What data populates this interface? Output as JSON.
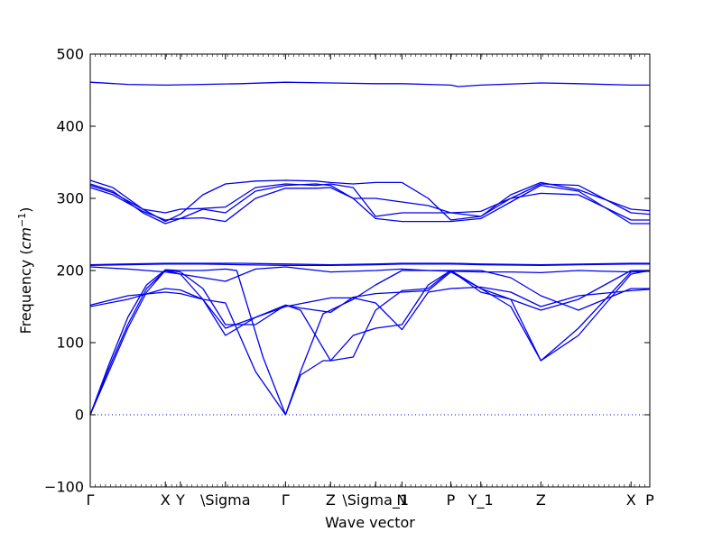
{
  "chart_data": {
    "type": "line",
    "title": "",
    "xlabel": "Wave vector",
    "ylabel_prefix": "Frequency (",
    "ylabel_unit_base": "cm",
    "ylabel_unit_exp": "−1",
    "ylabel_suffix": ")",
    "ylim": [
      -100,
      500
    ],
    "yticks": [
      -100,
      0,
      100,
      200,
      300,
      400,
      500
    ],
    "xlim": [
      0,
      7.45
    ],
    "grid": false,
    "legend": "none",
    "line_color": "#0000ee",
    "zero_line_color": "#0000ee",
    "xticks": [
      {
        "x": 0.0,
        "label": "Γ"
      },
      {
        "x": 1.0,
        "label": "X"
      },
      {
        "x": 1.2,
        "label": "Y"
      },
      {
        "x": 1.8,
        "label": "\\Sigma"
      },
      {
        "x": 2.6,
        "label": "Γ"
      },
      {
        "x": 3.2,
        "label": "Z"
      },
      {
        "x": 3.8,
        "label": "\\Sigma_1"
      },
      {
        "x": 4.15,
        "label": "N"
      },
      {
        "x": 4.8,
        "label": "P"
      },
      {
        "x": 5.2,
        "label": "Y_1"
      },
      {
        "x": 6.0,
        "label": "Z"
      },
      {
        "x": 7.2,
        "label": "X"
      },
      {
        "x": 7.45,
        "label": "P"
      }
    ],
    "series": [
      {
        "x": [
          0,
          0.25,
          0.5,
          0.75,
          1,
          1.2,
          1.5,
          1.8,
          2.2,
          2.6,
          2.8,
          3.2,
          3.5,
          3.8,
          4.15,
          4.5,
          4.8,
          5.2,
          5.6,
          6,
          6.5,
          7.2,
          7.45
        ],
        "values": [
          0,
          60,
          120,
          170,
          200,
          195,
          160,
          110,
          135,
          152,
          148,
          142,
          163,
          168,
          170,
          172,
          198,
          175,
          150,
          75,
          120,
          198,
          200
        ]
      },
      {
        "x": [
          0,
          0.25,
          0.5,
          0.75,
          1,
          1.2,
          1.5,
          1.8,
          2.2,
          2.6,
          2.8,
          3.2,
          3.5,
          3.8,
          4.15,
          4.5,
          4.8,
          5.2,
          5.6,
          6,
          6.5,
          7.2,
          7.45
        ],
        "values": [
          0,
          65,
          125,
          175,
          200,
          198,
          175,
          125,
          125,
          152,
          145,
          75,
          80,
          145,
          172,
          175,
          200,
          175,
          160,
          75,
          110,
          195,
          200
        ]
      },
      {
        "x": [
          0,
          0.25,
          0.5,
          0.75,
          1,
          1.2,
          1.5,
          1.8,
          1.95,
          2.3,
          2.6,
          2.8,
          3.1,
          3.2,
          3.5,
          3.8,
          4.15,
          4.5,
          4.8,
          5.2,
          5.6,
          6,
          6.5,
          7.2,
          7.45
        ],
        "values": [
          0,
          70,
          135,
          180,
          201,
          200,
          200,
          202,
          200,
          80,
          0,
          60,
          140,
          145,
          160,
          180,
          200,
          200,
          200,
          170,
          160,
          145,
          160,
          200,
          200
        ]
      },
      {
        "x": [
          0,
          0.5,
          1,
          1.2,
          1.5,
          1.8,
          2.2,
          2.6,
          2.8,
          3.1,
          3.2,
          3.5,
          3.8,
          4.15,
          4.5,
          4.8,
          5.2,
          5.6,
          6,
          6.5,
          7.2,
          7.45
        ],
        "values": [
          150,
          160,
          175,
          173,
          160,
          155,
          60,
          0,
          55,
          75,
          75,
          110,
          120,
          125,
          180,
          200,
          200,
          190,
          165,
          145,
          175,
          175
        ]
      },
      {
        "x": [
          0,
          0.5,
          1,
          1.2,
          1.5,
          1.8,
          2.2,
          2.6,
          3.2,
          3.5,
          3.8,
          4.15,
          4.5,
          4.8,
          5.2,
          5.6,
          6,
          6.5,
          7.2,
          7.45
        ],
        "values": [
          152,
          165,
          170,
          168,
          160,
          120,
          135,
          150,
          162,
          162,
          155,
          118,
          170,
          175,
          177,
          170,
          150,
          165,
          172,
          174
        ]
      },
      {
        "x": [
          0,
          0.5,
          1,
          1.2,
          1.5,
          1.8,
          2.2,
          2.6,
          3.2,
          3.8,
          4.15,
          4.5,
          4.8,
          5.2,
          5.6,
          6,
          6.5,
          7.2,
          7.45
        ],
        "values": [
          205,
          202,
          198,
          195,
          190,
          185,
          202,
          205,
          198,
          200,
          202,
          200,
          199,
          198,
          198,
          197,
          200,
          198,
          199
        ]
      },
      {
        "x": [
          0,
          0.5,
          1,
          1.5,
          2,
          2.6,
          3.2,
          3.8,
          4.15,
          4.8,
          5.2,
          6,
          6.5,
          7.2,
          7.45
        ],
        "values": [
          207,
          208,
          209,
          209,
          208,
          207,
          207,
          208,
          209,
          209,
          208,
          207,
          208,
          209,
          209
        ]
      },
      {
        "x": [
          0,
          1,
          2,
          2.6,
          3.2,
          3.8,
          4.15,
          4.8,
          5.2,
          6,
          7.2,
          7.45
        ],
        "values": [
          208,
          210,
          210,
          209,
          208,
          209,
          210,
          210,
          209,
          208,
          210,
          210
        ]
      },
      {
        "x": [
          0,
          0.3,
          0.7,
          1,
          1.2,
          1.5,
          1.8,
          2.2,
          2.6,
          3.0,
          3.2,
          3.5,
          3.8,
          4.15,
          4.5,
          4.8,
          5.2,
          5.6,
          6,
          6.5,
          7.2,
          7.45
        ],
        "values": [
          325,
          315,
          285,
          268,
          278,
          305,
          320,
          324,
          325,
          324,
          322,
          320,
          322,
          322,
          300,
          270,
          275,
          305,
          322,
          312,
          285,
          283
        ]
      },
      {
        "x": [
          0,
          0.3,
          0.7,
          1,
          1.2,
          1.5,
          1.8,
          2.2,
          2.6,
          3.0,
          3.2,
          3.5,
          3.8,
          4.15,
          4.5,
          4.8,
          5.2,
          5.6,
          6,
          6.5,
          7.2,
          7.45
        ],
        "values": [
          320,
          310,
          280,
          265,
          272,
          285,
          280,
          310,
          318,
          320,
          318,
          300,
          300,
          295,
          290,
          280,
          275,
          300,
          320,
          318,
          280,
          278
        ]
      },
      {
        "x": [
          0,
          0.3,
          0.7,
          1,
          1.2,
          1.5,
          1.8,
          2.2,
          2.6,
          3.0,
          3.2,
          3.5,
          3.8,
          4.15,
          4.5,
          4.8,
          5.2,
          5.6,
          6,
          6.5,
          7.2,
          7.45
        ],
        "values": [
          318,
          308,
          285,
          280,
          285,
          286,
          288,
          315,
          320,
          318,
          320,
          315,
          275,
          280,
          280,
          280,
          282,
          300,
          307,
          305,
          270,
          270
        ]
      },
      {
        "x": [
          0,
          0.3,
          0.7,
          1,
          1.2,
          1.5,
          1.8,
          2.2,
          2.6,
          3.0,
          3.2,
          3.5,
          3.8,
          4.15,
          4.5,
          4.8,
          5.2,
          5.6,
          6,
          6.5,
          7.2,
          7.45
        ],
        "values": [
          315,
          305,
          282,
          270,
          272,
          273,
          268,
          300,
          314,
          314,
          315,
          300,
          272,
          268,
          268,
          268,
          272,
          295,
          318,
          310,
          265,
          265
        ]
      },
      {
        "x": [
          0,
          0.5,
          1,
          1.5,
          2,
          2.6,
          3.2,
          3.8,
          4.15,
          4.5,
          4.8,
          4.9,
          5.2,
          6,
          6.5,
          7.2,
          7.45
        ],
        "values": [
          461,
          458,
          457,
          458,
          459,
          461,
          460,
          459,
          459,
          458,
          457,
          455,
          457,
          460,
          459,
          457,
          457
        ]
      }
    ]
  }
}
